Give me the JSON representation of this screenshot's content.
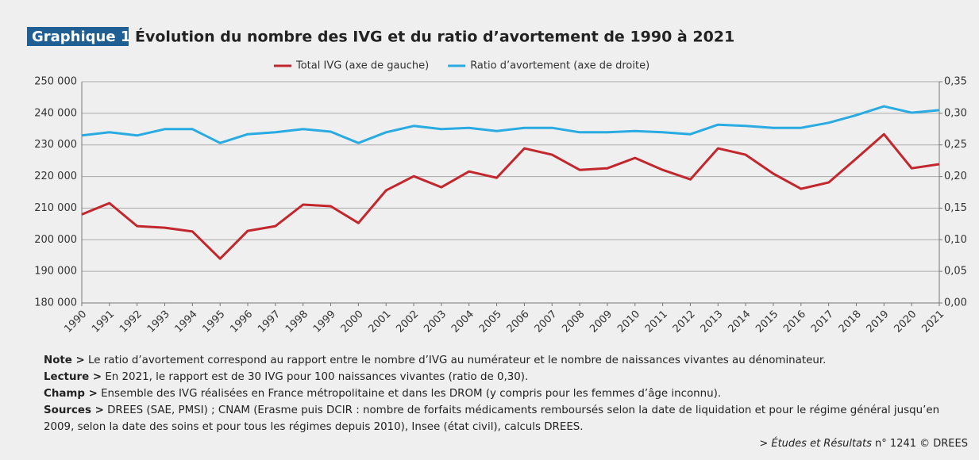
{
  "chart_data": {
    "type": "line",
    "figure_label": "Graphique 1",
    "title": "Évolution du nombre des IVG et du ratio d’avortement de 1990 à 2021",
    "categories": [
      "1990",
      "1991",
      "1992",
      "1993",
      "1994",
      "1995",
      "1996",
      "1997",
      "1998",
      "1999",
      "2000",
      "2001",
      "2002",
      "2003",
      "2004",
      "2005",
      "2006",
      "2007",
      "2008",
      "2009",
      "2010",
      "2011",
      "2012",
      "2013",
      "2014",
      "2015",
      "2016",
      "2017",
      "2018",
      "2019",
      "2020",
      "2021"
    ],
    "series": [
      {
        "name": "Total IVG (axe de gauche)",
        "color": "#c1272d",
        "axis": "y",
        "values": [
          208000,
          211600,
          204300,
          203800,
          202600,
          194000,
          202800,
          204300,
          211100,
          210600,
          205300,
          215600,
          220100,
          216600,
          221600,
          219600,
          228900,
          226900,
          222100,
          222600,
          225900,
          222100,
          219100,
          228900,
          226900,
          220900,
          216100,
          218100,
          225700,
          233400,
          222600,
          223900
        ]
      },
      {
        "name": "Ratio d’avortement (axe de droite)",
        "color": "#29abe2",
        "axis": "y2",
        "values": [
          0.265,
          0.27,
          0.265,
          0.275,
          0.275,
          0.253,
          0.267,
          0.27,
          0.275,
          0.271,
          0.253,
          0.27,
          0.28,
          0.275,
          0.277,
          0.272,
          0.277,
          0.277,
          0.27,
          0.27,
          0.272,
          0.27,
          0.267,
          0.282,
          0.28,
          0.277,
          0.277,
          0.285,
          0.297,
          0.311,
          0.301,
          0.305
        ]
      }
    ],
    "ylim": [
      180000,
      250000
    ],
    "yticks": [
      {
        "value": 180000,
        "label": "180 000"
      },
      {
        "value": 190000,
        "label": "190 000"
      },
      {
        "value": 200000,
        "label": "200 000"
      },
      {
        "value": 210000,
        "label": "210 000"
      },
      {
        "value": 220000,
        "label": "220 000"
      },
      {
        "value": 230000,
        "label": "230 000"
      },
      {
        "value": 240000,
        "label": "240 000"
      },
      {
        "value": 250000,
        "label": "250 000"
      }
    ],
    "y2lim": [
      0,
      0.35
    ],
    "y2ticks": [
      {
        "value": 0,
        "label": "0,00"
      },
      {
        "value": 0.05,
        "label": "0,05"
      },
      {
        "value": 0.1,
        "label": "0,10"
      },
      {
        "value": 0.15,
        "label": "0,15"
      },
      {
        "value": 0.2,
        "label": "0,20"
      },
      {
        "value": 0.25,
        "label": "0,25"
      },
      {
        "value": 0.3,
        "label": "0,30"
      },
      {
        "value": 0.35,
        "label": "0,35"
      }
    ],
    "grid": true,
    "legend": "top"
  },
  "notes": [
    {
      "label": "Note >",
      "text": "Le ratio d’avortement correspond au rapport entre le nombre d’IVG au numérateur et le nombre de naissances vivantes au dénominateur."
    },
    {
      "label": "Lecture >",
      "text": "En 2021, le rapport est de 30 IVG pour 100 naissances vivantes (ratio de 0,30)."
    },
    {
      "label": "Champ >",
      "text": "Ensemble des IVG réalisées en France métropolitaine et dans les DROM (y compris pour les femmes d’âge inconnu)."
    },
    {
      "label": "Sources >",
      "text": "DREES (SAE, PMSI) ; CNAM (Erasme puis DCIR : nombre de forfaits médicaments remboursés selon la date de liquidation et pour le régime général jusqu’en 2009, selon la date des soins et pour tous les régimes depuis 2010), Insee (état civil), calculs DREES."
    }
  ],
  "source": {
    "prefix": ">",
    "title": "Études et Résultats",
    "suffix": "n° 1241 © DREES"
  }
}
